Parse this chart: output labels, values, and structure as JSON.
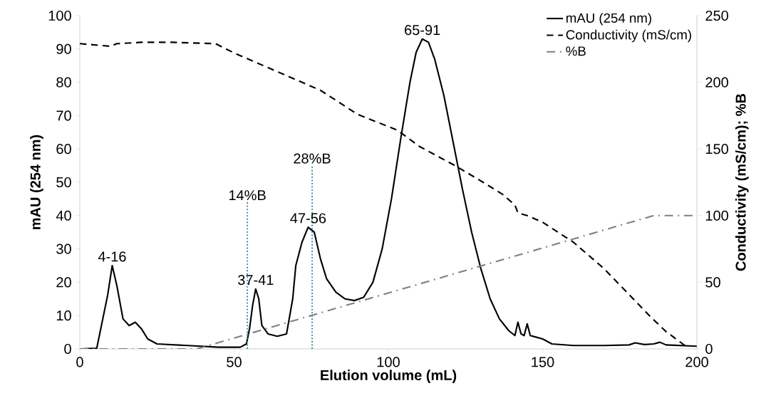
{
  "chart_data": {
    "type": "line",
    "xlabel": "Elution volume (mL)",
    "ylabel": "mAU (254 nm)",
    "y2label": "Conductivity (mS/cm); %B",
    "series": [
      {
        "name": "mAU (254 nm)",
        "color": "#000000",
        "line_style": "solid",
        "x": [
          0,
          5.5,
          7,
          9,
          10.5,
          12,
          14,
          16,
          18,
          20,
          22,
          25,
          35,
          45,
          52,
          54,
          55,
          56,
          57,
          58,
          59,
          61,
          64,
          67,
          69,
          70,
          72,
          74,
          76,
          78,
          80,
          83,
          86,
          89,
          92,
          95,
          98,
          101,
          104,
          107,
          109,
          111,
          113,
          115,
          118,
          121,
          124,
          127,
          130,
          133,
          136,
          139,
          141,
          142,
          143,
          144,
          145,
          146,
          148,
          150,
          153,
          160,
          170,
          178,
          180,
          183,
          186,
          188,
          190,
          195,
          200
        ],
        "values": [
          0,
          0.2,
          7,
          16,
          25,
          19,
          9,
          7,
          8,
          6,
          3,
          1.5,
          1,
          0.5,
          0.5,
          1.5,
          6,
          13,
          18,
          15,
          7,
          4.5,
          3.8,
          4.5,
          15,
          25,
          32,
          36.5,
          35,
          27,
          21,
          17,
          15,
          14.5,
          15.5,
          20,
          30,
          45,
          63,
          80,
          89,
          93,
          92,
          87,
          76,
          62,
          48,
          35,
          24,
          15,
          9,
          5.5,
          4,
          8,
          4.5,
          4,
          7.5,
          4,
          3.5,
          3,
          1.5,
          1,
          1,
          1.2,
          1.8,
          1.3,
          1.5,
          2,
          1.2,
          1,
          0.8
        ]
      },
      {
        "name": "Conductivity (mS/cm)",
        "color": "#000000",
        "axis": "y2",
        "line_style": "dashed",
        "x": [
          0,
          10,
          12,
          20,
          30,
          44,
          50,
          60,
          70,
          78,
          90,
          103,
          110,
          122,
          130,
          137,
          141,
          142,
          145,
          150,
          160,
          170,
          180,
          185,
          190,
          197
        ],
        "values": [
          229,
          227,
          229,
          230,
          230,
          229,
          222,
          212,
          202,
          194,
          176,
          164,
          152,
          137,
          126,
          116,
          108,
          102,
          100,
          95,
          80,
          60,
          36,
          24,
          13,
          1
        ]
      },
      {
        "name": "%B",
        "color": "#808080",
        "axis": "y2",
        "line_style": "dashdot",
        "x": [
          0,
          38,
          180,
          186,
          200
        ],
        "values": [
          0,
          0,
          96,
          100,
          100
        ]
      }
    ],
    "xlim": [
      0,
      200
    ],
    "xticks": [
      0,
      50,
      100,
      150,
      200
    ],
    "ylim": [
      0,
      100
    ],
    "yticks": [
      0,
      10,
      20,
      30,
      40,
      50,
      60,
      70,
      80,
      90,
      100
    ],
    "y2lim": [
      0,
      250
    ],
    "y2ticks": [
      0,
      50,
      100,
      150,
      200,
      250
    ],
    "ref_lines": [
      {
        "axis": "x",
        "value": 54.3,
        "label": "14%B",
        "color": "#31849b",
        "line_style": "dotted"
      },
      {
        "axis": "x",
        "value": 75.3,
        "label": "28%B",
        "color": "#31849b",
        "line_style": "dotted"
      }
    ],
    "annotations": [
      {
        "text": "4-16",
        "x": 10.5,
        "y": 25
      },
      {
        "text": "37-41",
        "x": 57,
        "y": 18
      },
      {
        "text": "47-56",
        "x": 74,
        "y": 36.5
      },
      {
        "text": "65-91",
        "x": 111,
        "y": 93
      }
    ],
    "grid": false,
    "legend": "top right",
    "marker": "none"
  }
}
